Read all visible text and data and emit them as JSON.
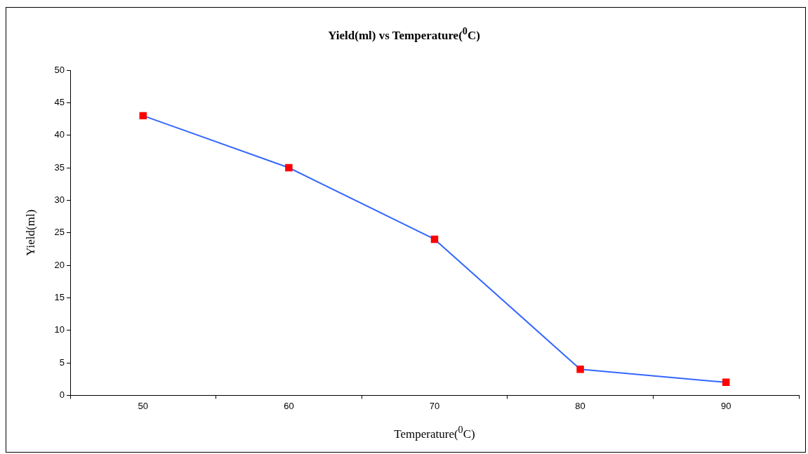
{
  "chart_data": {
    "type": "line",
    "title": "Yield(ml) vs Temperature($^{0}$C)",
    "xlabel": "Temperature($^{0}$C)",
    "ylabel": "Yield(ml)",
    "categories": [
      "50",
      "60",
      "70",
      "80",
      "90"
    ],
    "series": [
      {
        "color": "#3366ff",
        "colors": [
          "#ff0000",
          "#ff0000",
          "#ff0000",
          "#ff0000",
          "#ff0000"
        ],
        "values": [
          43,
          35,
          24,
          4,
          2
        ]
      }
    ],
    "ylim": [
      0,
      50
    ],
    "yticks": [
      0,
      5,
      10,
      15,
      20,
      25,
      30,
      35,
      40,
      45,
      50
    ],
    "grid": false,
    "legend": false,
    "marker": "square",
    "line_style": "solid"
  }
}
